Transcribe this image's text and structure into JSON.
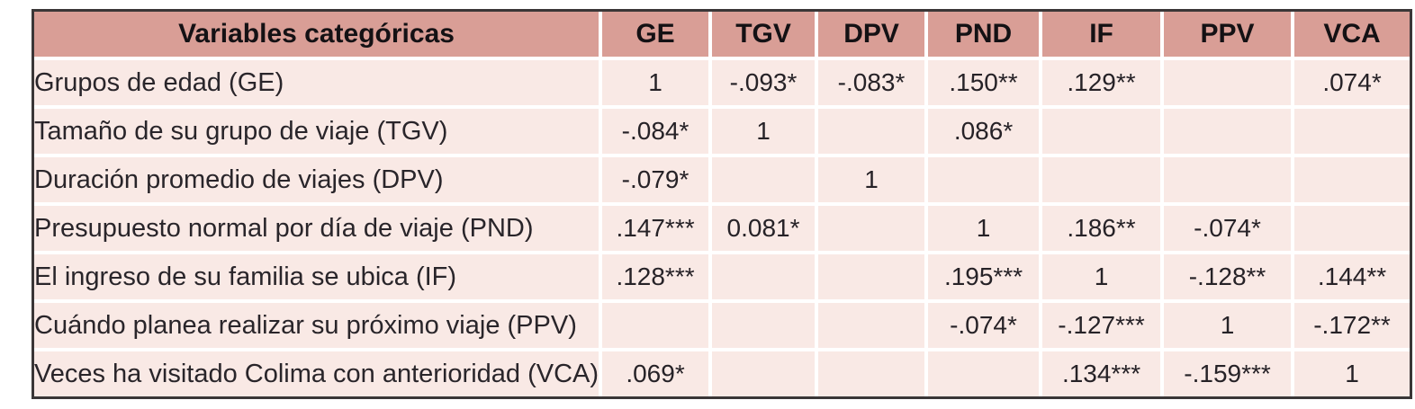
{
  "table": {
    "title_column_label": "Variables categóricas",
    "columns": [
      "GE",
      "TGV",
      "DPV",
      "PND",
      "IF",
      "PPV",
      "VCA"
    ],
    "rows": [
      {
        "label": "Grupos de edad (GE)",
        "values": [
          "1",
          "-.093*",
          "-.083*",
          ".150**",
          ".129**",
          "",
          ".074*"
        ]
      },
      {
        "label": "Tamaño de su grupo de viaje (TGV)",
        "values": [
          "-.084*",
          "1",
          "",
          ".086*",
          "",
          "",
          ""
        ]
      },
      {
        "label": "Duración promedio de viajes (DPV)",
        "values": [
          "-.079*",
          "",
          "1",
          "",
          "",
          "",
          ""
        ]
      },
      {
        "label": "Presupuesto normal por día de viaje (PND)",
        "values": [
          ".147***",
          "0.081*",
          "",
          "1",
          ".186**",
          "-.074*",
          ""
        ]
      },
      {
        "label": "El ingreso de su familia se ubica (IF)",
        "values": [
          ".128***",
          "",
          "",
          ".195***",
          "1",
          "-.128**",
          ".144**"
        ]
      },
      {
        "label": "Cuándo planea realizar su próximo viaje (PPV)",
        "values": [
          "",
          "",
          "",
          "-.074*",
          "-.127***",
          "1",
          "-.172**"
        ]
      },
      {
        "label": "Veces ha visitado Colima con anterioridad (VCA)",
        "values": [
          ".069*",
          "",
          "",
          "",
          ".134***",
          "-.159***",
          "1"
        ]
      }
    ],
    "colors": {
      "header_bg": "#d99e96",
      "body_bg": "#f9e9e5",
      "separator": "#ffffff",
      "outer_border": "#3a3637",
      "text": "#262227"
    }
  },
  "chart_data": {
    "type": "table",
    "title": "Variables categóricas",
    "columns": [
      "GE",
      "TGV",
      "DPV",
      "PND",
      "IF",
      "PPV",
      "VCA"
    ],
    "row_labels": [
      "Grupos de edad (GE)",
      "Tamaño de su grupo de viaje (TGV)",
      "Duración promedio de viajes (DPV)",
      "Presupuesto normal por día de viaje (PND)",
      "El ingreso de su familia se ubica (IF)",
      "Cuándo planea realizar su próximo viaje (PPV)",
      "Veces ha visitado Colima con anterioridad (VCA)"
    ],
    "cells": [
      [
        "1",
        "-.093*",
        "-.083*",
        ".150**",
        ".129**",
        "",
        ".074*"
      ],
      [
        "-.084*",
        "1",
        "",
        ".086*",
        "",
        "",
        ""
      ],
      [
        "-.079*",
        "",
        "1",
        "",
        "",
        "",
        ""
      ],
      [
        ".147***",
        "0.081*",
        "",
        "1",
        ".186**",
        "-.074*",
        ""
      ],
      [
        ".128***",
        "",
        "",
        ".195***",
        "1",
        "-.128**",
        ".144**"
      ],
      [
        "",
        "",
        "",
        "-.074*",
        "-.127***",
        "1",
        "-.172**"
      ],
      [
        ".069*",
        "",
        "",
        "",
        ".134***",
        "-.159***",
        "1"
      ]
    ]
  }
}
